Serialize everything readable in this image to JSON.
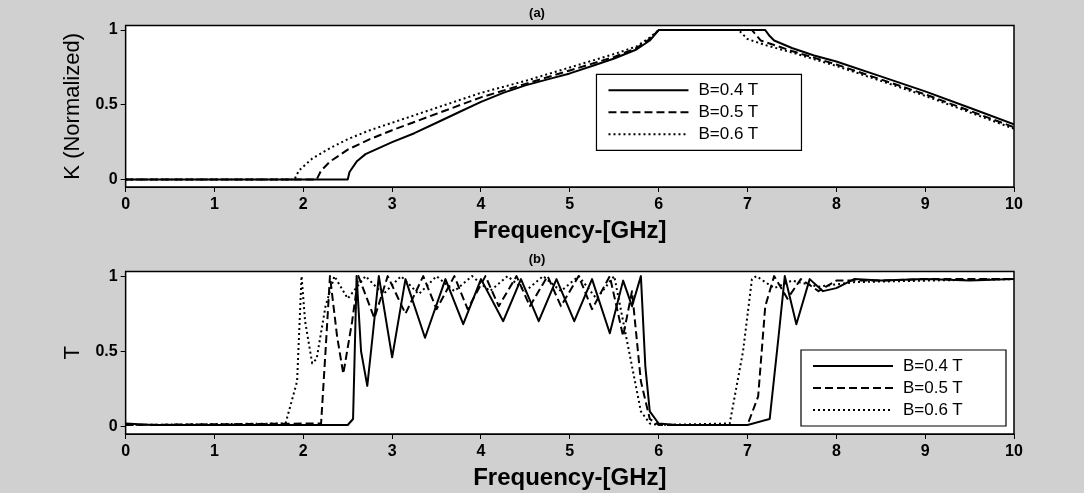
{
  "chart_data": [
    {
      "type": "line",
      "title": "(a)",
      "xlabel": "Frequency-[GHz]",
      "ylabel": "K (Normalized)",
      "xlim": [
        0,
        10
      ],
      "xticks": [
        0,
        1,
        2,
        3,
        4,
        5,
        6,
        7,
        8,
        9,
        10
      ],
      "ylim": [
        -0.05,
        1.03
      ],
      "yticks": [
        0,
        0.5,
        1
      ],
      "grid": false,
      "legend": "right",
      "marker": "none",
      "series": [
        {
          "name": "B=0.4 T",
          "color": "#000000",
          "line_style": "solid",
          "x": [
            0,
            2.5,
            2.52,
            2.6,
            2.7,
            2.85,
            3,
            3.25,
            3.5,
            3.75,
            4,
            4.25,
            4.5,
            4.75,
            5,
            5.25,
            5.5,
            5.75,
            5.9,
            6,
            7.2,
            7.25,
            7.3,
            7.5,
            7.75,
            8,
            8.5,
            9,
            9.5,
            10
          ],
          "values": [
            0,
            0,
            0.05,
            0.12,
            0.17,
            0.21,
            0.25,
            0.31,
            0.38,
            0.45,
            0.52,
            0.58,
            0.63,
            0.67,
            0.71,
            0.76,
            0.81,
            0.87,
            0.93,
            1,
            1,
            0.96,
            0.93,
            0.88,
            0.83,
            0.79,
            0.69,
            0.59,
            0.48,
            0.37
          ]
        },
        {
          "name": "B=0.5 T",
          "color": "#000000",
          "line_style": "dashed",
          "x": [
            0,
            2.15,
            2.2,
            2.3,
            2.5,
            2.75,
            3,
            3.5,
            4,
            4.5,
            5,
            5.5,
            5.75,
            5.9,
            6,
            7.05,
            7.15,
            7.3,
            7.5,
            8,
            8.5,
            9,
            9.5,
            10
          ],
          "values": [
            0,
            0,
            0.06,
            0.12,
            0.2,
            0.27,
            0.33,
            0.44,
            0.55,
            0.64,
            0.73,
            0.82,
            0.88,
            0.94,
            1,
            1,
            0.93,
            0.9,
            0.86,
            0.77,
            0.67,
            0.57,
            0.46,
            0.35
          ]
        },
        {
          "name": "B=0.6 T",
          "color": "#000000",
          "line_style": "dotted",
          "x": [
            0,
            1.9,
            1.95,
            2.1,
            2.3,
            2.5,
            2.75,
            3,
            3.5,
            4,
            4.5,
            5,
            5.5,
            5.75,
            5.9,
            6,
            6.9,
            7.0,
            7.2,
            7.5,
            8,
            8.5,
            9,
            9.5,
            10
          ],
          "values": [
            0,
            0,
            0.06,
            0.14,
            0.21,
            0.27,
            0.33,
            0.38,
            0.48,
            0.58,
            0.66,
            0.75,
            0.84,
            0.89,
            0.95,
            1,
            1,
            0.94,
            0.9,
            0.85,
            0.76,
            0.66,
            0.56,
            0.45,
            0.34
          ]
        }
      ]
    },
    {
      "type": "line",
      "title": "(b)",
      "xlabel": "Frequency-[GHz]",
      "ylabel": "T",
      "xlim": [
        0,
        10
      ],
      "xticks": [
        0,
        1,
        2,
        3,
        4,
        5,
        6,
        7,
        8,
        9,
        10
      ],
      "ylim": [
        -0.05,
        1.03
      ],
      "yticks": [
        0,
        0.5,
        1
      ],
      "grid": false,
      "legend": "bottom right",
      "marker": "none",
      "series": [
        {
          "name": "B=0.4 T",
          "color": "#000000",
          "line_style": "solid",
          "x": [
            0,
            0.3,
            2.5,
            2.56,
            2.6,
            2.65,
            2.72,
            2.78,
            2.85,
            3.0,
            3.15,
            3.37,
            3.6,
            3.8,
            4.0,
            4.25,
            4.45,
            4.65,
            4.85,
            5.05,
            5.25,
            5.45,
            5.6,
            5.7,
            5.8,
            5.85,
            5.9,
            6.0,
            6.2,
            7.0,
            7.25,
            7.35,
            7.42,
            7.55,
            7.7,
            7.85,
            8.0,
            8.2,
            8.5,
            9,
            9.5,
            10
          ],
          "values": [
            0.02,
            0.01,
            0.01,
            0.05,
            1.0,
            0.5,
            0.27,
            0.6,
            1.0,
            0.46,
            0.98,
            0.59,
            0.98,
            0.68,
            0.98,
            0.7,
            0.98,
            0.7,
            0.98,
            0.7,
            0.98,
            0.62,
            0.97,
            0.8,
            1.0,
            0.4,
            0.1,
            0.02,
            0.01,
            0.01,
            0.05,
            0.6,
            1.0,
            0.68,
            0.98,
            0.9,
            0.92,
            0.98,
            0.97,
            0.98,
            0.97,
            0.98
          ]
        },
        {
          "name": "B=0.5 T",
          "color": "#000000",
          "line_style": "dashed",
          "x": [
            0,
            2.2,
            2.25,
            2.3,
            2.38,
            2.45,
            2.55,
            2.62,
            2.8,
            2.95,
            3.15,
            3.35,
            3.5,
            3.7,
            3.85,
            4.05,
            4.2,
            4.4,
            4.55,
            4.75,
            4.9,
            5.1,
            5.25,
            5.45,
            5.6,
            5.7,
            5.8,
            5.9,
            6.0,
            7.0,
            7.12,
            7.2,
            7.3,
            7.45,
            7.6,
            7.8,
            8.0,
            8.5,
            9,
            10
          ],
          "values": [
            0.01,
            0.02,
            0.5,
            1.0,
            0.6,
            0.35,
            0.7,
            1.0,
            0.72,
            1.0,
            0.75,
            1.0,
            0.78,
            1.0,
            0.78,
            1.0,
            0.8,
            1.0,
            0.8,
            1.0,
            0.8,
            1.0,
            0.78,
            1.0,
            0.6,
            0.9,
            0.3,
            0.05,
            0.01,
            0.01,
            0.2,
            0.8,
            1.0,
            0.85,
            0.98,
            0.9,
            0.97,
            0.97,
            0.98,
            0.98
          ]
        },
        {
          "name": "B=0.6 T",
          "color": "#000000",
          "line_style": "dotted",
          "x": [
            0,
            1.8,
            1.93,
            1.98,
            2.02,
            2.1,
            2.15,
            2.25,
            2.35,
            2.5,
            2.7,
            2.9,
            3.1,
            3.3,
            3.5,
            3.7,
            3.9,
            4.1,
            4.3,
            4.5,
            4.7,
            4.9,
            5.1,
            5.3,
            5.5,
            5.6,
            5.7,
            5.8,
            5.9,
            6.0,
            6.8,
            6.95,
            7.05,
            7.1,
            7.3,
            7.5,
            7.8,
            8.2,
            9,
            10
          ],
          "values": [
            0.01,
            0.02,
            0.3,
            1.0,
            0.7,
            0.42,
            0.45,
            0.8,
            1.0,
            0.85,
            1.0,
            0.88,
            1.0,
            0.88,
            1.0,
            0.9,
            1.0,
            0.9,
            1.0,
            0.9,
            1.0,
            0.9,
            1.0,
            0.85,
            1.0,
            0.7,
            0.4,
            0.1,
            0.02,
            0.01,
            0.02,
            0.5,
            0.98,
            1.0,
            0.92,
            0.97,
            0.93,
            0.96,
            0.97,
            0.98
          ]
        }
      ]
    }
  ]
}
